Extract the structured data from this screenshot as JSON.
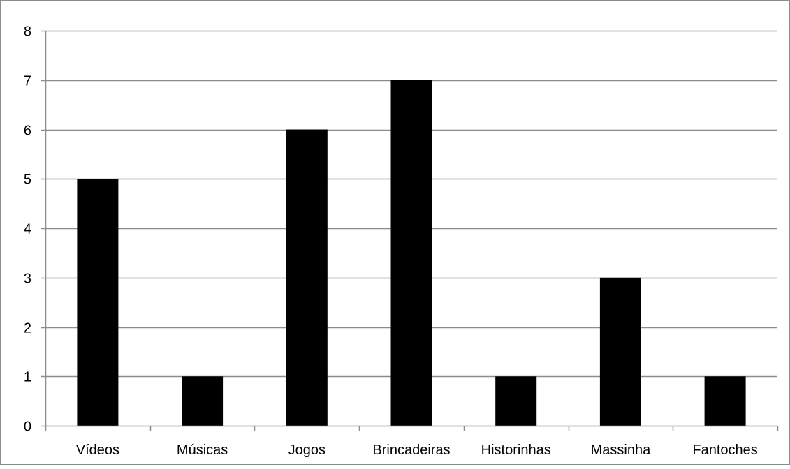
{
  "chart_data": {
    "type": "bar",
    "title": "",
    "xlabel": "",
    "ylabel": "",
    "categories": [
      "Vídeos",
      "Músicas",
      "Jogos",
      "Brincadeiras",
      "Historinhas",
      "Massinha",
      "Fantoches"
    ],
    "values": [
      5,
      1,
      6,
      7,
      1,
      3,
      1
    ],
    "ylim": [
      0,
      8
    ],
    "yticks": [
      "0",
      "1",
      "2",
      "3",
      "4",
      "5",
      "6",
      "7",
      "8"
    ],
    "grid": true,
    "legend": "none",
    "colors": {
      "bar": "#000000",
      "grid": "#8c8c8c",
      "axis": "#8c8c8c",
      "frame": "#8c8c8c"
    }
  }
}
